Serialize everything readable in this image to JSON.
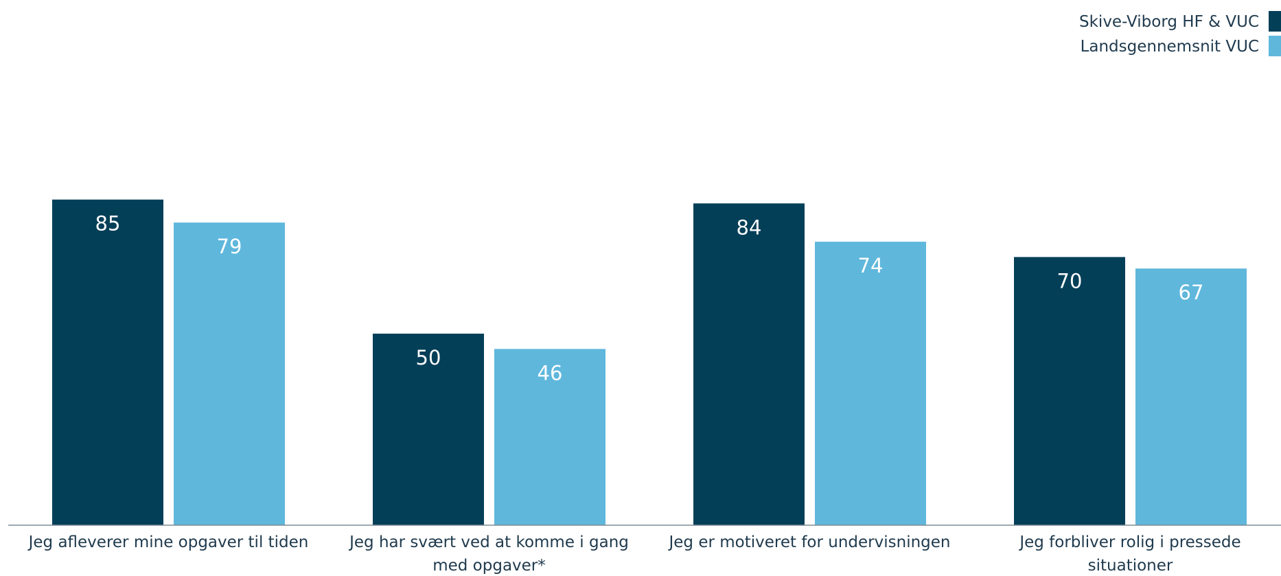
{
  "chart_data": {
    "type": "bar",
    "title": "",
    "xlabel": "",
    "ylabel": "",
    "ylim": [
      0,
      100
    ],
    "grid": false,
    "legend_position": "top-right",
    "categories": [
      [
        "Jeg afleverer mine opgaver til tiden"
      ],
      [
        "Jeg har svært ved at komme i gang",
        "med opgaver*"
      ],
      [
        "Jeg er motiveret for undervisningen"
      ],
      [
        "Jeg forbliver rolig i pressede",
        "situationer"
      ]
    ],
    "series": [
      {
        "name": "Skive-Viborg HF & VUC",
        "color": "#043f58",
        "values": [
          85,
          50,
          84,
          70
        ]
      },
      {
        "name": "Landsgennemsnit VUC",
        "color": "#5fb7dc",
        "values": [
          79,
          46,
          74,
          67
        ]
      }
    ]
  }
}
